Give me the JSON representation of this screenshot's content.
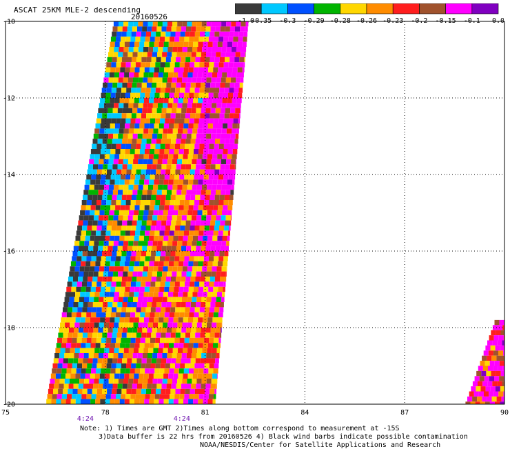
{
  "header": {
    "title": "ASCAT 25KM MLE-2 descending",
    "date": "20160526"
  },
  "colorbar": {
    "colors": [
      "#3a3a3a",
      "#00c8ff",
      "#0050ff",
      "#00b400",
      "#ffd700",
      "#ff8c00",
      "#ff1e1e",
      "#a0522d",
      "#ff00ff",
      "#8000c0"
    ],
    "labels": [
      "-1.0",
      "-0.35",
      "-0.3",
      "-0.29",
      "-0.28",
      "-0.26",
      "-0.23",
      "-0.2",
      "-0.15",
      "-0.1",
      "0.0"
    ]
  },
  "map": {
    "lat_labels": [
      "-10",
      "-12",
      "-14",
      "-16",
      "-18",
      "-20"
    ],
    "lon_labels": [
      "75",
      "78",
      "81",
      "84",
      "87",
      "90"
    ],
    "lon_range": [
      75,
      90
    ],
    "lat_range": [
      -10,
      -20
    ],
    "grid": "dotted",
    "time_labels": [
      {
        "text": "4:24",
        "lon": 77.4
      },
      {
        "text": "4:24",
        "lon": 80.3
      }
    ],
    "swaths": [
      {
        "name": "main swath",
        "corners_lonlat": [
          [
            78.25,
            -10
          ],
          [
            82.3,
            -10
          ],
          [
            81.3,
            -20
          ],
          [
            76.2,
            -20
          ]
        ]
      },
      {
        "name": "east edge",
        "corners_lonlat": [
          [
            89.7,
            -17.8
          ],
          [
            90,
            -17.8
          ],
          [
            90,
            -20
          ],
          [
            88.8,
            -20
          ]
        ]
      }
    ]
  },
  "notes": {
    "line1": "Note: 1) Times are GMT 2)Times along bottom correspond to measurement at -15S",
    "line2": "3)Data buffer is 22 hrs from 20160526 4) Black wind barbs indicate possible contamination",
    "line3": "NOAA/NESDIS/Center for Satellite Applications and Research"
  }
}
